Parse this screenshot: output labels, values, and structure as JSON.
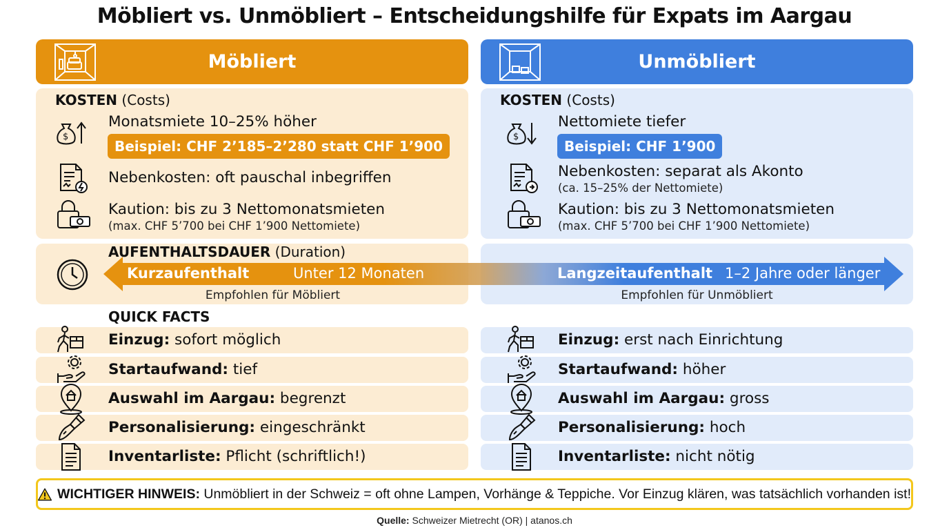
{
  "title": "Möbliert vs. Unmöbliert – Entscheidungshilfe für Expats im Aargau",
  "left": {
    "header": "Möbliert",
    "kosten_label": "KOSTEN",
    "kosten_sub": "(Costs)",
    "rent_text": "Monatsmiete 10–25% höher",
    "rent_example": "Beispiel: CHF 2’185–2’280 statt CHF 1’900",
    "neben_text": "Nebenkosten: oft pauschal inbegriffen",
    "kaution_text": "Kaution: bis zu 3 Nettomonatsmieten",
    "kaution_sub": "(max. CHF 5’700 bei CHF 1’900 Nettomiete)",
    "dauer_label": "AUFENTHALTSDAUER",
    "dauer_sub": "(Duration)",
    "arrow_bold": "Kurzaufenthalt",
    "arrow_text": "Unter 12 Monaten",
    "empfohlen": "Empfohlen für Möbliert",
    "quick_facts": "QUICK FACTS",
    "facts": [
      {
        "label": "Einzug:",
        "value": " sofort möglich",
        "icon": "move-in-icon"
      },
      {
        "label": "Startaufwand:",
        "value": " tief",
        "icon": "hand-gear-icon"
      },
      {
        "label": "Auswahl im Aargau:",
        "value": " begrenzt",
        "icon": "map-pin-home-icon"
      },
      {
        "label": "Personalisierung:",
        "value": " eingeschränkt",
        "icon": "paintbrush-icon"
      },
      {
        "label": "Inventarliste:",
        "value": " Pflicht (schriftlich!)",
        "icon": "document-icon"
      }
    ]
  },
  "right": {
    "header": "Unmöbliert",
    "kosten_label": "KOSTEN",
    "kosten_sub": "(Costs)",
    "rent_text": "Nettomiete tiefer",
    "rent_example": "Beispiel: CHF 1’900",
    "neben_text": "Nebenkosten: separat als Akonto",
    "neben_sub": "(ca. 15–25% der Nettomiete)",
    "kaution_text": "Kaution: bis zu 3 Nettomonatsmieten",
    "kaution_sub": "(max. CHF 5’700 bei CHF 1’900 Nettomiete)",
    "arrow_bold": "Langzeitaufenthalt",
    "arrow_text": "1–2 Jahre oder länger",
    "empfohlen": "Empfohlen für Unmöbliert",
    "facts": [
      {
        "label": "Einzug:",
        "value": " erst nach Einrichtung",
        "icon": "move-in-icon"
      },
      {
        "label": "Startaufwand:",
        "value": " höher",
        "icon": "hand-gear-icon"
      },
      {
        "label": "Auswahl im Aargau:",
        "value": " gross",
        "icon": "map-pin-home-icon"
      },
      {
        "label": "Personalisierung:",
        "value": " hoch",
        "icon": "paintbrush-icon"
      },
      {
        "label": "Inventarliste:",
        "value": " nicht nötig",
        "icon": "document-icon"
      }
    ]
  },
  "notice": {
    "label": "WICHTIGER HINWEIS:",
    "text": " Unmöbliert in der Schweiz = oft ohne Lampen, Vorhänge & Teppiche. Vor Einzug klären, was tatsächlich vorhanden ist!"
  },
  "source": {
    "label": "Quelle:",
    "text": " Schweizer Mietrecht (OR) | atanos.ch"
  },
  "colors": {
    "orange": "#e5920f",
    "orange_light": "#fcecd3",
    "blue": "#3f7fdd",
    "blue_light": "#e1ebfa",
    "warning_yellow": "#f3c71c"
  }
}
